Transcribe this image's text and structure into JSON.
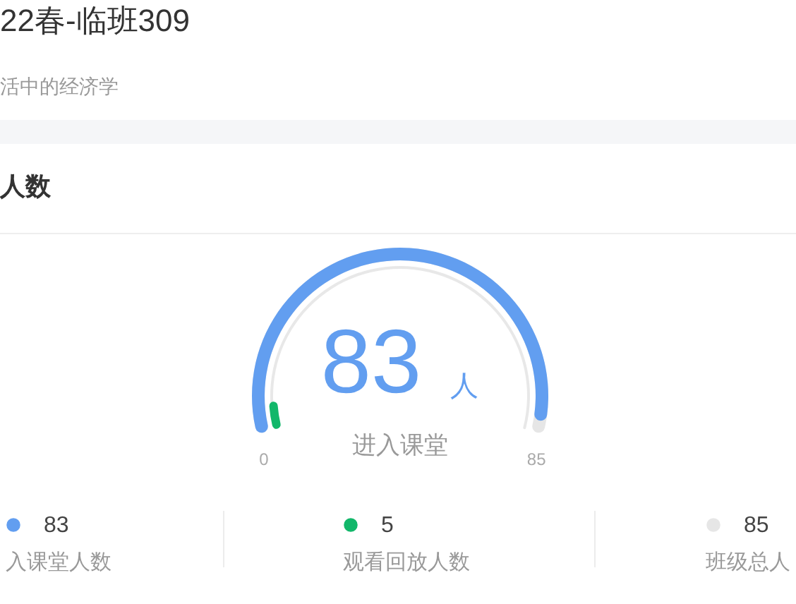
{
  "chart_data": {
    "type": "other",
    "title": "22春-临班309",
    "subtitle": "活中的经济学",
    "annotations": [
      "人数",
      "83",
      "人",
      "进入课堂",
      "0",
      "85"
    ],
    "categories": [
      "入课堂人数",
      "观看回放人数",
      "班级总人"
    ],
    "values": [
      83,
      5,
      85
    ],
    "colors": [
      "#629ef0",
      "#12b76a",
      "#e6e6e6"
    ],
    "data_labels": true
  }
}
